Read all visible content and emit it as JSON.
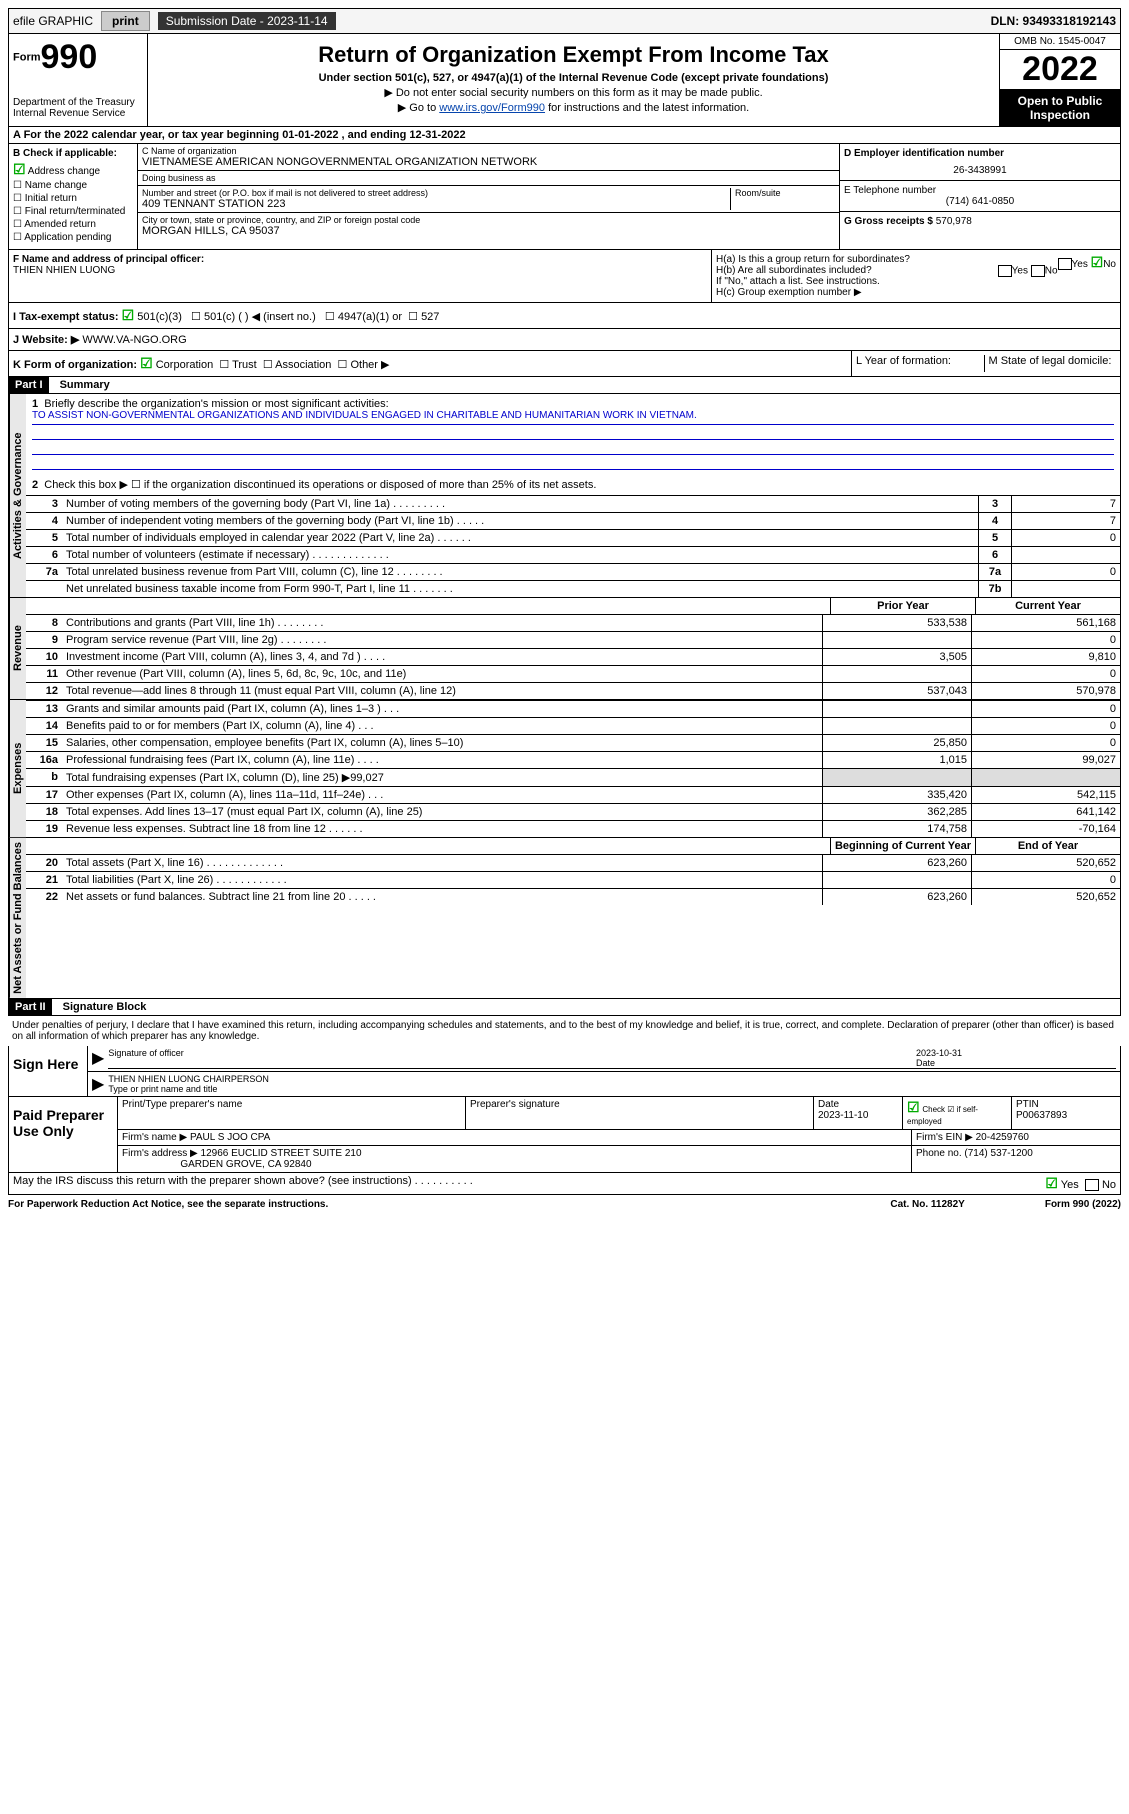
{
  "topbar": {
    "efile": "efile GRAPHIC",
    "print": "print",
    "subdate_label": "Submission Date - 2023-11-14",
    "dln": "DLN: 93493318192143"
  },
  "header": {
    "form": "Form",
    "num": "990",
    "dept": "Department of the Treasury",
    "irs": "Internal Revenue Service",
    "title": "Return of Organization Exempt From Income Tax",
    "sub": "Under section 501(c), 527, or 4947(a)(1) of the Internal Revenue Code (except private foundations)",
    "note1": "▶ Do not enter social security numbers on this form as it may be made public.",
    "note2_pre": "▶ Go to ",
    "note2_link": "www.irs.gov/Form990",
    "note2_post": " for instructions and the latest information.",
    "omb": "OMB No. 1545-0047",
    "year": "2022",
    "open": "Open to Public Inspection"
  },
  "rowA": "A For the 2022 calendar year, or tax year beginning 01-01-2022   , and ending 12-31-2022",
  "colB": {
    "title": "B Check if applicable:",
    "items": [
      "Address change",
      "Name change",
      "Initial return",
      "Final return/terminated",
      "Amended return",
      "Application pending"
    ],
    "checked_idx": 0
  },
  "colC": {
    "name_lbl": "C Name of organization",
    "name": "VIETNAMESE AMERICAN NONGOVERNMENTAL ORGANIZATION NETWORK",
    "dba_lbl": "Doing business as",
    "dba": "",
    "addr_lbl": "Number and street (or P.O. box if mail is not delivered to street address)",
    "room_lbl": "Room/suite",
    "addr": "409 TENNANT STATION 223",
    "city_lbl": "City or town, state or province, country, and ZIP or foreign postal code",
    "city": "MORGAN HILLS, CA  95037"
  },
  "colD": {
    "ein_lbl": "D Employer identification number",
    "ein": "26-3438991",
    "tel_lbl": "E Telephone number",
    "tel": "(714) 641-0850",
    "gross_lbl": "G Gross receipts $",
    "gross": "570,978"
  },
  "rowF": {
    "lbl": "F Name and address of principal officer:",
    "name": "THIEN NHIEN LUONG"
  },
  "rowH": {
    "ha": "H(a)  Is this a group return for subordinates?",
    "hb": "H(b)  Are all subordinates included?",
    "hb_note": "If \"No,\" attach a list. See instructions.",
    "hc": "H(c)  Group exemption number ▶",
    "yes": "Yes",
    "no": "No"
  },
  "rowI": {
    "lbl": "I    Tax-exempt status:",
    "opts": [
      "501(c)(3)",
      "501(c) (   ) ◀ (insert no.)",
      "4947(a)(1) or",
      "527"
    ]
  },
  "rowJ": {
    "lbl": "J    Website: ▶",
    "val": "WWW.VA-NGO.ORG"
  },
  "rowK": {
    "lbl": "K Form of organization:",
    "opts": [
      "Corporation",
      "Trust",
      "Association",
      "Other ▶"
    ]
  },
  "rowL": "L Year of formation:",
  "rowM": "M State of legal domicile:",
  "part1": {
    "hdr": "Part I",
    "title": "Summary",
    "line1": "Briefly describe the organization's mission or most significant activities:",
    "mission": "TO ASSIST NON-GOVERNMENTAL ORGANIZATIONS AND INDIVIDUALS ENGAGED IN CHARITABLE AND HUMANITARIAN WORK IN VIETNAM.",
    "line2": "Check this box ▶ ☐  if the organization discontinued its operations or disposed of more than 25% of its net assets.",
    "sections": {
      "gov": "Activities & Governance",
      "rev": "Revenue",
      "exp": "Expenses",
      "net": "Net Assets or Fund Balances"
    },
    "num_rows": [
      {
        "n": "3",
        "d": "Number of voting members of the governing body (Part VI, line 1a)  .   .   .   .   .   .   .   .   .",
        "box": "3",
        "v": "7"
      },
      {
        "n": "4",
        "d": "Number of independent voting members of the governing body (Part VI, line 1b)  .   .   .   .   .",
        "box": "4",
        "v": "7"
      },
      {
        "n": "5",
        "d": "Total number of individuals employed in calendar year 2022 (Part V, line 2a)  .   .   .   .   .   .",
        "box": "5",
        "v": "0"
      },
      {
        "n": "6",
        "d": "Total number of volunteers (estimate if necessary)  .   .   .   .   .   .   .   .   .   .   .   .   .",
        "box": "6",
        "v": ""
      },
      {
        "n": "7a",
        "d": "Total unrelated business revenue from Part VIII, column (C), line 12  .   .   .   .   .   .   .   .",
        "box": "7a",
        "v": "0"
      },
      {
        "n": "",
        "d": "Net unrelated business taxable income from Form 990-T, Part I, line 11  .   .   .   .   .   .   .",
        "box": "7b",
        "v": ""
      }
    ],
    "prior_hdr": "Prior Year",
    "curr_hdr": "Current Year",
    "rev_rows": [
      {
        "n": "8",
        "d": "Contributions and grants (Part VIII, line 1h)   .   .   .   .   .   .   .   .",
        "p": "533,538",
        "c": "561,168"
      },
      {
        "n": "9",
        "d": "Program service revenue (Part VIII, line 2g)   .   .   .   .   .   .   .   .",
        "p": "",
        "c": "0"
      },
      {
        "n": "10",
        "d": "Investment income (Part VIII, column (A), lines 3, 4, and 7d )  .   .   .   .",
        "p": "3,505",
        "c": "9,810"
      },
      {
        "n": "11",
        "d": "Other revenue (Part VIII, column (A), lines 5, 6d, 8c, 9c, 10c, and 11e)",
        "p": "",
        "c": "0"
      },
      {
        "n": "12",
        "d": "Total revenue—add lines 8 through 11 (must equal Part VIII, column (A), line 12)",
        "p": "537,043",
        "c": "570,978"
      }
    ],
    "exp_rows": [
      {
        "n": "13",
        "d": "Grants and similar amounts paid (Part IX, column (A), lines 1–3 )  .   .   .",
        "p": "",
        "c": "0"
      },
      {
        "n": "14",
        "d": "Benefits paid to or for members (Part IX, column (A), line 4)  .   .   .",
        "p": "",
        "c": "0"
      },
      {
        "n": "15",
        "d": "Salaries, other compensation, employee benefits (Part IX, column (A), lines 5–10)",
        "p": "25,850",
        "c": "0"
      },
      {
        "n": "16a",
        "d": "Professional fundraising fees (Part IX, column (A), line 11e)  .   .   .   .",
        "p": "1,015",
        "c": "99,027"
      },
      {
        "n": "b",
        "d": "Total fundraising expenses (Part IX, column (D), line 25) ▶99,027",
        "p": "shade",
        "c": "shade"
      },
      {
        "n": "17",
        "d": "Other expenses (Part IX, column (A), lines 11a–11d, 11f–24e)  .   .   .",
        "p": "335,420",
        "c": "542,115"
      },
      {
        "n": "18",
        "d": "Total expenses. Add lines 13–17 (must equal Part IX, column (A), line 25)",
        "p": "362,285",
        "c": "641,142"
      },
      {
        "n": "19",
        "d": "Revenue less expenses. Subtract line 18 from line 12  .   .   .   .   .   .",
        "p": "174,758",
        "c": "-70,164"
      }
    ],
    "net_hdr_l": "Beginning of Current Year",
    "net_hdr_r": "End of Year",
    "net_rows": [
      {
        "n": "20",
        "d": "Total assets (Part X, line 16)  .   .   .   .   .   .   .   .   .   .   .   .   .",
        "p": "623,260",
        "c": "520,652"
      },
      {
        "n": "21",
        "d": "Total liabilities (Part X, line 26)  .   .   .   .   .   .   .   .   .   .   .   .",
        "p": "",
        "c": "0"
      },
      {
        "n": "22",
        "d": "Net assets or fund balances. Subtract line 21 from line 20  .   .   .   .   .",
        "p": "623,260",
        "c": "520,652"
      }
    ]
  },
  "part2": {
    "hdr": "Part II",
    "title": "Signature Block",
    "decl": "Under penalties of perjury, I declare that I have examined this return, including accompanying schedules and statements, and to the best of my knowledge and belief, it is true, correct, and complete. Declaration of preparer (other than officer) is based on all information of which preparer has any knowledge.",
    "sign_here": "Sign Here",
    "sig_officer": "Signature of officer",
    "date": "Date",
    "sig_date": "2023-10-31",
    "officer_name": "THIEN NHIEN LUONG CHAIRPERSON",
    "type_name": "Type or print name and title",
    "paid": "Paid Preparer Use Only",
    "prep_name_lbl": "Print/Type preparer's name",
    "prep_sig_lbl": "Preparer's signature",
    "prep_date_lbl": "Date",
    "prep_date": "2023-11-10",
    "check_if": "Check ☑ if self-employed",
    "ptin_lbl": "PTIN",
    "ptin": "P00637893",
    "firm_name_lbl": "Firm's name    ▶",
    "firm_name": "PAUL S JOO CPA",
    "firm_ein_lbl": "Firm's EIN ▶",
    "firm_ein": "20-4259760",
    "firm_addr_lbl": "Firm's address ▶",
    "firm_addr": "12966 EUCLID STREET SUITE 210",
    "firm_city": "GARDEN GROVE, CA  92840",
    "phone_lbl": "Phone no.",
    "phone": "(714) 537-1200",
    "may_irs": "May the IRS discuss this return with the preparer shown above? (see instructions)   .   .   .   .   .   .   .   .   .   ."
  },
  "footer": {
    "left": "For Paperwork Reduction Act Notice, see the separate instructions.",
    "mid": "Cat. No. 11282Y",
    "right": "Form 990 (2022)"
  }
}
